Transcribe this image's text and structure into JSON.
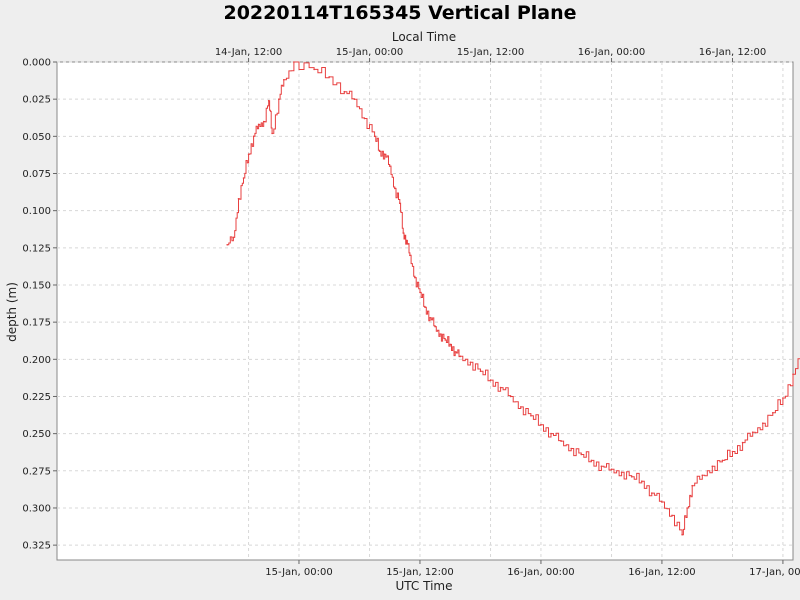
{
  "chart_data": {
    "type": "line",
    "title": "20220114T165345 Vertical Plane",
    "xlabel": "UTC Time",
    "x2label": "Local Time",
    "ylabel": "depth (m)",
    "y_inverted": true,
    "ylim": [
      0.0,
      0.335
    ],
    "xlim_hours_utc": [
      "2022-01-14T00:00:00Z",
      "2022-01-17T01:00:00Z"
    ],
    "x_ticks": [
      {
        "time": "2022-01-15T00:00:00Z",
        "label": "15-Jan, 00:00"
      },
      {
        "time": "2022-01-15T12:00:00Z",
        "label": "15-Jan, 12:00"
      },
      {
        "time": "2022-01-16T00:00:00Z",
        "label": "16-Jan, 00:00"
      },
      {
        "time": "2022-01-16T12:00:00Z",
        "label": "16-Jan, 12:00"
      },
      {
        "time": "2022-01-17T00:00:00Z",
        "label": "17-Jan, 00:00"
      }
    ],
    "x2_ticks": [
      {
        "time": "2022-01-14T19:00:00Z",
        "label": "14-Jan, 12:00"
      },
      {
        "time": "2022-01-15T07:00:00Z",
        "label": "15-Jan, 00:00"
      },
      {
        "time": "2022-01-15T19:00:00Z",
        "label": "15-Jan, 12:00"
      },
      {
        "time": "2022-01-16T07:00:00Z",
        "label": "16-Jan, 00:00"
      },
      {
        "time": "2022-01-16T19:00:00Z",
        "label": "16-Jan, 12:00"
      }
    ],
    "y_ticks": [
      {
        "value": 0.0,
        "label": "0.000"
      },
      {
        "value": 0.025,
        "label": "0.025"
      },
      {
        "value": 0.05,
        "label": "0.050"
      },
      {
        "value": 0.075,
        "label": "0.075"
      },
      {
        "value": 0.1,
        "label": "0.100"
      },
      {
        "value": 0.125,
        "label": "0.125"
      },
      {
        "value": 0.15,
        "label": "0.150"
      },
      {
        "value": 0.175,
        "label": "0.175"
      },
      {
        "value": 0.2,
        "label": "0.200"
      },
      {
        "value": 0.225,
        "label": "0.225"
      },
      {
        "value": 0.25,
        "label": "0.250"
      },
      {
        "value": 0.275,
        "label": "0.275"
      },
      {
        "value": 0.3,
        "label": "0.300"
      },
      {
        "value": 0.325,
        "label": "0.325"
      }
    ],
    "grid": true,
    "line_color": "#e84040",
    "series": [
      {
        "x": [
          "2022-01-14T16:53:00Z",
          "2022-01-14T17:30:00Z",
          "2022-01-14T18:00:00Z",
          "2022-01-14T18:30:00Z",
          "2022-01-14T19:00:00Z",
          "2022-01-14T19:30:00Z",
          "2022-01-14T20:00:00Z",
          "2022-01-14T20:30:00Z",
          "2022-01-14T21:00:00Z",
          "2022-01-14T21:20:00Z",
          "2022-01-14T22:00:00Z",
          "2022-01-14T22:30:00Z",
          "2022-01-14T23:30:00Z",
          "2022-01-15T01:30:00Z",
          "2022-01-15T03:00:00Z",
          "2022-01-15T04:30:00Z",
          "2022-01-15T05:30:00Z",
          "2022-01-15T06:30:00Z",
          "2022-01-15T07:30:00Z",
          "2022-01-15T08:00:00Z",
          "2022-01-15T08:30:00Z",
          "2022-01-15T09:00:00Z",
          "2022-01-15T09:30:00Z",
          "2022-01-15T10:00:00Z",
          "2022-01-15T10:20:00Z",
          "2022-01-15T10:40:00Z",
          "2022-01-15T11:00:00Z",
          "2022-01-15T11:30:00Z",
          "2022-01-15T12:00:00Z",
          "2022-01-15T12:30:00Z",
          "2022-01-15T13:00:00Z",
          "2022-01-15T13:30:00Z",
          "2022-01-15T14:00:00Z",
          "2022-01-15T14:30:00Z",
          "2022-01-15T15:00:00Z",
          "2022-01-15T15:30:00Z",
          "2022-01-15T16:00:00Z",
          "2022-01-15T17:00:00Z",
          "2022-01-15T18:00:00Z",
          "2022-01-15T19:00:00Z",
          "2022-01-15T20:00:00Z",
          "2022-01-15T21:00:00Z",
          "2022-01-15T22:00:00Z",
          "2022-01-15T23:00:00Z",
          "2022-01-16T00:00:00Z",
          "2022-01-16T01:00:00Z",
          "2022-01-16T02:00:00Z",
          "2022-01-16T03:00:00Z",
          "2022-01-16T04:00:00Z",
          "2022-01-16T05:00:00Z",
          "2022-01-16T06:00:00Z",
          "2022-01-16T07:00:00Z",
          "2022-01-16T08:00:00Z",
          "2022-01-16T09:00:00Z",
          "2022-01-16T10:00:00Z",
          "2022-01-16T11:00:00Z",
          "2022-01-16T12:00:00Z",
          "2022-01-16T13:00:00Z",
          "2022-01-16T14:00:00Z",
          "2022-01-16T14:30:00Z",
          "2022-01-16T15:00:00Z",
          "2022-01-16T16:00:00Z",
          "2022-01-16T17:00:00Z",
          "2022-01-16T18:00:00Z",
          "2022-01-16T19:00:00Z",
          "2022-01-16T20:00:00Z",
          "2022-01-16T21:00:00Z",
          "2022-01-16T22:00:00Z",
          "2022-01-16T23:00:00Z",
          "2022-01-17T00:00:00Z",
          "2022-01-17T01:00:00Z",
          "2022-01-17T02:00:00Z"
        ],
        "y": [
          0.123,
          0.118,
          0.092,
          0.078,
          0.062,
          0.05,
          0.042,
          0.04,
          0.026,
          0.048,
          0.025,
          0.012,
          0.0,
          0.005,
          0.01,
          0.02,
          0.025,
          0.038,
          0.05,
          0.06,
          0.062,
          0.07,
          0.085,
          0.095,
          0.115,
          0.12,
          0.13,
          0.145,
          0.155,
          0.165,
          0.172,
          0.178,
          0.183,
          0.187,
          0.19,
          0.195,
          0.198,
          0.202,
          0.208,
          0.214,
          0.219,
          0.225,
          0.232,
          0.238,
          0.244,
          0.25,
          0.255,
          0.26,
          0.264,
          0.268,
          0.272,
          0.274,
          0.276,
          0.279,
          0.282,
          0.29,
          0.296,
          0.305,
          0.318,
          0.3,
          0.285,
          0.278,
          0.272,
          0.268,
          0.262,
          0.256,
          0.249,
          0.243,
          0.236,
          0.226,
          0.21,
          0.195
        ]
      }
    ]
  }
}
